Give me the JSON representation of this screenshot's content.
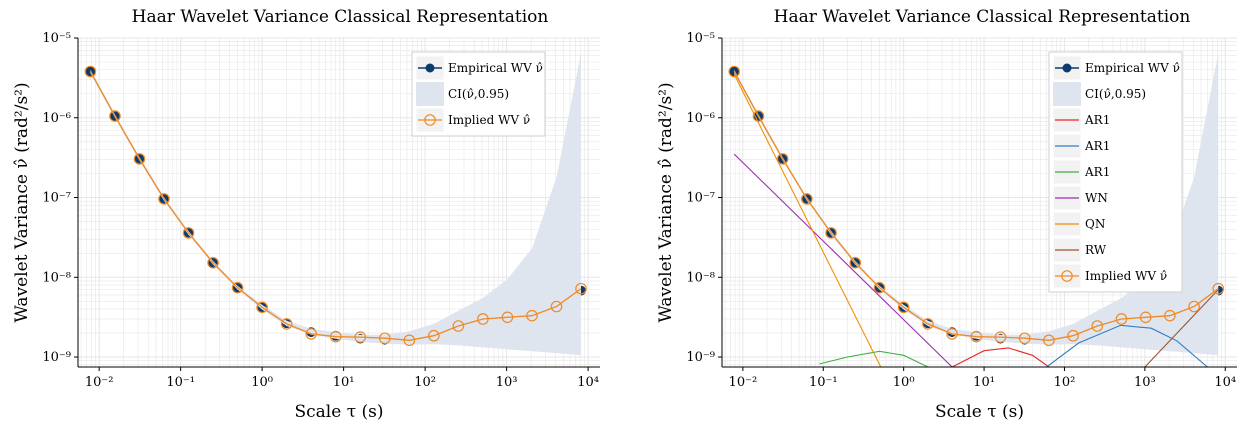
{
  "colors": {
    "empirical": "#0d3b6e",
    "implied": "#f08a24",
    "ci": "#dfe5ef",
    "grid": "#e6e6e6",
    "AR1_a": "#e8272c",
    "AR1_b": "#2f7fc4",
    "AR1_c": "#3fae3f",
    "WN": "#9b2fae",
    "QN": "#f0900a",
    "RW": "#a0522d"
  },
  "chart_data": [
    {
      "type": "line",
      "title": "Haar Wavelet Variance Classical Representation",
      "xlabel": "Scale τ (s)",
      "ylabel": "Wavelet Variance ν̂ (rad²/s²)",
      "xscale": "log",
      "yscale": "log",
      "xlim": [
        0.0055,
        14000
      ],
      "ylim": [
        7.5e-10,
        1e-05
      ],
      "x_ticks": [
        "10⁻²",
        "10⁻¹",
        "10⁰",
        "10¹",
        "10²",
        "10³",
        "10⁴"
      ],
      "y_ticks": [
        "10⁻⁹",
        "10⁻⁸",
        "10⁻⁷",
        "10⁻⁶",
        "10⁻⁵"
      ],
      "grid": true,
      "legend_position": "top-right",
      "x": [
        0.00781,
        0.01563,
        0.03125,
        0.0625,
        0.125,
        0.25,
        0.5,
        1,
        2,
        4,
        8,
        16,
        32,
        64,
        128,
        256,
        512,
        1024,
        2048,
        4096,
        8192
      ],
      "series": [
        {
          "name": "Empirical WV ν̂",
          "color_key": "empirical",
          "marker": "filled-circle",
          "values": [
            3.8e-06,
            1.05e-06,
            3.05e-07,
            9.6e-08,
            3.6e-08,
            1.52e-08,
            7.4e-09,
            4.2e-09,
            2.65e-09,
            2.05e-09,
            1.85e-09,
            1.7e-09,
            1.65e-09,
            1.7e-09,
            1.9e-09,
            2.4e-09,
            2.8e-09,
            3.1e-09,
            3.7e-09,
            5e-09,
            6.8e-09
          ]
        },
        {
          "name": "CI(ν̂,0.95)",
          "color_key": "ci",
          "kind": "band",
          "lower": [
            3.6e-06,
            1e-06,
            2.9e-07,
            9.1e-08,
            3.4e-08,
            1.44e-08,
            7e-09,
            3.95e-09,
            2.45e-09,
            1.9e-09,
            1.7e-09,
            1.55e-09,
            1.47e-09,
            1.43e-09,
            1.45e-09,
            1.4e-09,
            1.32e-09,
            1.25e-09,
            1.18e-09,
            1.12e-09,
            1.05e-09
          ],
          "upper": [
            4e-06,
            1.1e-06,
            3.2e-07,
            1.01e-07,
            3.8e-08,
            1.6e-08,
            7.8e-09,
            4.5e-09,
            2.85e-09,
            2.25e-09,
            2.05e-09,
            1.9e-09,
            1.9e-09,
            2.1e-09,
            2.6e-09,
            3.8e-09,
            5.5e-09,
            9.5e-09,
            2.3e-08,
            1.8e-07,
            6.5e-06
          ]
        },
        {
          "name": "Implied WV ν̂",
          "color_key": "implied",
          "marker": "open-circle",
          "values": [
            3.8e-06,
            1.05e-06,
            3.05e-07,
            9.6e-08,
            3.6e-08,
            1.52e-08,
            7.4e-09,
            4.2e-09,
            2.6e-09,
            1.95e-09,
            1.8e-09,
            1.78e-09,
            1.72e-09,
            1.62e-09,
            1.85e-09,
            2.45e-09,
            3e-09,
            3.15e-09,
            3.3e-09,
            4.3e-09,
            7.2e-09
          ]
        }
      ]
    },
    {
      "type": "line",
      "title": "Haar Wavelet Variance Classical Representation",
      "xlabel": "Scale τ (s)",
      "ylabel": "Wavelet Variance ν̂ (rad²/s²)",
      "xscale": "log",
      "yscale": "log",
      "xlim": [
        0.0055,
        14000
      ],
      "ylim": [
        7.5e-10,
        1e-05
      ],
      "x_ticks": [
        "10⁻²",
        "10⁻¹",
        "10⁰",
        "10¹",
        "10²",
        "10³",
        "10⁴"
      ],
      "y_ticks": [
        "10⁻⁹",
        "10⁻⁸",
        "10⁻⁷",
        "10⁻⁶",
        "10⁻⁵"
      ],
      "grid": true,
      "legend_position": "top-right",
      "x": [
        0.00781,
        0.01563,
        0.03125,
        0.0625,
        0.125,
        0.25,
        0.5,
        1,
        2,
        4,
        8,
        16,
        32,
        64,
        128,
        256,
        512,
        1024,
        2048,
        4096,
        8192
      ],
      "series": [
        {
          "name": "Empirical WV ν̂",
          "color_key": "empirical",
          "marker": "filled-circle",
          "values": [
            3.8e-06,
            1.05e-06,
            3.05e-07,
            9.6e-08,
            3.6e-08,
            1.52e-08,
            7.4e-09,
            4.2e-09,
            2.65e-09,
            2.05e-09,
            1.85e-09,
            1.7e-09,
            1.65e-09,
            1.7e-09,
            1.9e-09,
            2.4e-09,
            2.8e-09,
            3.1e-09,
            3.7e-09,
            5e-09,
            6.8e-09
          ]
        },
        {
          "name": "CI(ν̂,0.95)",
          "color_key": "ci",
          "kind": "band",
          "lower": [
            3.6e-06,
            1e-06,
            2.9e-07,
            9.1e-08,
            3.4e-08,
            1.44e-08,
            7e-09,
            3.95e-09,
            2.45e-09,
            1.9e-09,
            1.7e-09,
            1.55e-09,
            1.47e-09,
            1.43e-09,
            1.45e-09,
            1.4e-09,
            1.32e-09,
            1.25e-09,
            1.18e-09,
            1.12e-09,
            1.05e-09
          ],
          "upper": [
            4e-06,
            1.1e-06,
            3.2e-07,
            1.01e-07,
            3.8e-08,
            1.6e-08,
            7.8e-09,
            4.5e-09,
            2.85e-09,
            2.25e-09,
            2.05e-09,
            1.9e-09,
            1.9e-09,
            2.1e-09,
            2.6e-09,
            3.8e-09,
            5.5e-09,
            9.5e-09,
            2.3e-08,
            1.8e-07,
            6.5e-06
          ]
        },
        {
          "name": "AR1",
          "color_key": "AR1_a",
          "kind": "component",
          "points": [
            [
              4,
              7.5e-10
            ],
            [
              10,
              1.2e-09
            ],
            [
              20,
              1.3e-09
            ],
            [
              40,
              1.05e-09
            ],
            [
              64,
              7.5e-10
            ]
          ]
        },
        {
          "name": "AR1",
          "color_key": "AR1_b",
          "kind": "component",
          "points": [
            [
              60,
              7.5e-10
            ],
            [
              150,
              1.5e-09
            ],
            [
              500,
              2.5e-09
            ],
            [
              1200,
              2.3e-09
            ],
            [
              2500,
              1.6e-09
            ],
            [
              6000,
              7.5e-10
            ]
          ]
        },
        {
          "name": "AR1",
          "color_key": "AR1_c",
          "kind": "component",
          "points": [
            [
              0.09,
              8.2e-10
            ],
            [
              0.2,
              1e-09
            ],
            [
              0.5,
              1.18e-09
            ],
            [
              1,
              1.05e-09
            ],
            [
              2,
              7.5e-10
            ]
          ]
        },
        {
          "name": "WN",
          "color_key": "WN",
          "kind": "component",
          "points": [
            [
              0.0078,
              3.5e-07
            ],
            [
              4,
              7.5e-10
            ]
          ]
        },
        {
          "name": "QN",
          "color_key": "QN",
          "kind": "component",
          "points": [
            [
              0.0078,
              3.5e-06
            ],
            [
              0.52,
              7.5e-10
            ]
          ]
        },
        {
          "name": "RW",
          "color_key": "RW",
          "kind": "component",
          "points": [
            [
              1000,
              7.5e-10
            ],
            [
              8192,
              7e-09
            ]
          ]
        },
        {
          "name": "Implied WV ν̂",
          "color_key": "implied",
          "marker": "open-circle",
          "values": [
            3.8e-06,
            1.05e-06,
            3.05e-07,
            9.6e-08,
            3.6e-08,
            1.52e-08,
            7.4e-09,
            4.2e-09,
            2.6e-09,
            1.95e-09,
            1.8e-09,
            1.78e-09,
            1.72e-09,
            1.62e-09,
            1.85e-09,
            2.45e-09,
            3e-09,
            3.15e-09,
            3.3e-09,
            4.3e-09,
            7.2e-09
          ]
        }
      ]
    }
  ]
}
